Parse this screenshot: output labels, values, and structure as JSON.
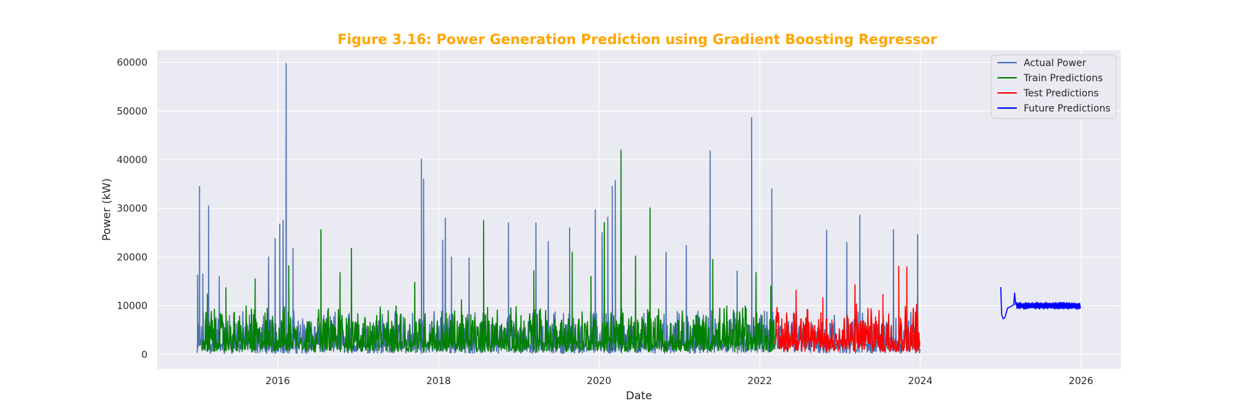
{
  "chart_data": {
    "type": "line",
    "title": "Figure 3.16: Power Generation Prediction using Gradient Boosting Regressor",
    "title_color": "#FFA500",
    "xlabel": "Date",
    "ylabel": "Power (kW)",
    "x_type": "date",
    "xlim": [
      "2014-07-01",
      "2026-07-01"
    ],
    "ylim": [
      -3000,
      62500
    ],
    "x_ticks": [
      "2016",
      "2018",
      "2020",
      "2022",
      "2024",
      "2026"
    ],
    "y_ticks": [
      0,
      10000,
      20000,
      30000,
      40000,
      50000,
      60000
    ],
    "grid": true,
    "background": "#EAEAF2",
    "legend_position": "top-right",
    "series": [
      {
        "name": "Actual Power",
        "color": "#4C72B0",
        "x_start": "2015-01-01",
        "x_end": "2023-12-31",
        "typical_range": [
          200,
          9000
        ],
        "peaks": [
          {
            "x": "2015-01-01",
            "y": 16300
          },
          {
            "x": "2015-01-10",
            "y": 34500
          },
          {
            "x": "2015-01-25",
            "y": 16500
          },
          {
            "x": "2015-02-20",
            "y": 30500
          },
          {
            "x": "2015-04-10",
            "y": 16000
          },
          {
            "x": "2015-11-20",
            "y": 20000
          },
          {
            "x": "2015-12-20",
            "y": 23800
          },
          {
            "x": "2016-01-10",
            "y": 26800
          },
          {
            "x": "2016-01-25",
            "y": 27500
          },
          {
            "x": "2016-02-08",
            "y": 59800
          },
          {
            "x": "2016-03-10",
            "y": 21800
          },
          {
            "x": "2017-10-15",
            "y": 40100
          },
          {
            "x": "2017-10-25",
            "y": 36000
          },
          {
            "x": "2018-01-20",
            "y": 23500
          },
          {
            "x": "2018-02-01",
            "y": 28000
          },
          {
            "x": "2018-03-01",
            "y": 20000
          },
          {
            "x": "2018-05-20",
            "y": 19800
          },
          {
            "x": "2018-11-15",
            "y": 27000
          },
          {
            "x": "2019-03-20",
            "y": 27000
          },
          {
            "x": "2019-05-15",
            "y": 23200
          },
          {
            "x": "2019-08-20",
            "y": 26000
          },
          {
            "x": "2019-12-15",
            "y": 29700
          },
          {
            "x": "2020-01-15",
            "y": 25000
          },
          {
            "x": "2020-02-10",
            "y": 28200
          },
          {
            "x": "2020-03-01",
            "y": 34500
          },
          {
            "x": "2020-03-15",
            "y": 35700
          },
          {
            "x": "2020-04-10",
            "y": 29000
          },
          {
            "x": "2020-11-01",
            "y": 21000
          },
          {
            "x": "2021-02-01",
            "y": 22400
          },
          {
            "x": "2021-05-20",
            "y": 41800
          },
          {
            "x": "2021-09-20",
            "y": 17100
          },
          {
            "x": "2021-11-25",
            "y": 48700
          },
          {
            "x": "2022-02-25",
            "y": 34000
          },
          {
            "x": "2022-11-01",
            "y": 25500
          },
          {
            "x": "2023-02-01",
            "y": 23000
          },
          {
            "x": "2023-04-01",
            "y": 28600
          },
          {
            "x": "2023-09-01",
            "y": 25600
          },
          {
            "x": "2023-12-20",
            "y": 24600
          }
        ]
      },
      {
        "name": "Train Predictions",
        "color": "#008000",
        "x_start": "2015-01-20",
        "x_end": "2022-03-10",
        "typical_range": [
          500,
          10000
        ],
        "peaks": [
          {
            "x": "2015-02-15",
            "y": 12400
          },
          {
            "x": "2015-05-10",
            "y": 13700
          },
          {
            "x": "2015-09-20",
            "y": 15500
          },
          {
            "x": "2016-02-20",
            "y": 18200
          },
          {
            "x": "2016-07-15",
            "y": 25600
          },
          {
            "x": "2016-10-10",
            "y": 16800
          },
          {
            "x": "2016-12-01",
            "y": 21800
          },
          {
            "x": "2017-09-15",
            "y": 14800
          },
          {
            "x": "2018-04-15",
            "y": 11200
          },
          {
            "x": "2018-07-25",
            "y": 27500
          },
          {
            "x": "2019-03-10",
            "y": 17200
          },
          {
            "x": "2019-09-01",
            "y": 21000
          },
          {
            "x": "2019-11-25",
            "y": 16000
          },
          {
            "x": "2020-01-25",
            "y": 27100
          },
          {
            "x": "2020-04-10",
            "y": 42000
          },
          {
            "x": "2020-06-15",
            "y": 20200
          },
          {
            "x": "2020-08-20",
            "y": 30100
          },
          {
            "x": "2021-06-01",
            "y": 19500
          },
          {
            "x": "2021-12-15",
            "y": 16800
          },
          {
            "x": "2022-02-20",
            "y": 14000
          }
        ]
      },
      {
        "name": "Test Predictions",
        "color": "#FF0000",
        "x_start": "2022-03-10",
        "x_end": "2023-12-31",
        "typical_range": [
          500,
          10500
        ],
        "peaks": [
          {
            "x": "2022-06-15",
            "y": 13200
          },
          {
            "x": "2022-10-15",
            "y": 11600
          },
          {
            "x": "2023-03-10",
            "y": 14300
          },
          {
            "x": "2023-07-15",
            "y": 12300
          },
          {
            "x": "2023-09-25",
            "y": 18100
          },
          {
            "x": "2023-11-01",
            "y": 18000
          },
          {
            "x": "2023-12-15",
            "y": 10300
          }
        ]
      },
      {
        "name": "Future Predictions",
        "color": "#0000FF",
        "x_start": "2025-01-01",
        "x_end": "2025-12-31",
        "typical_range": [
          9300,
          10700
        ],
        "points": [
          {
            "x": "2025-01-01",
            "y": 13800
          },
          {
            "x": "2025-01-05",
            "y": 8200
          },
          {
            "x": "2025-01-12",
            "y": 7300
          },
          {
            "x": "2025-01-20",
            "y": 7600
          },
          {
            "x": "2025-02-01",
            "y": 9500
          },
          {
            "x": "2025-02-15",
            "y": 9800
          },
          {
            "x": "2025-03-01",
            "y": 10200
          },
          {
            "x": "2025-03-05",
            "y": 12600
          },
          {
            "x": "2025-03-10",
            "y": 10200
          }
        ]
      }
    ]
  }
}
